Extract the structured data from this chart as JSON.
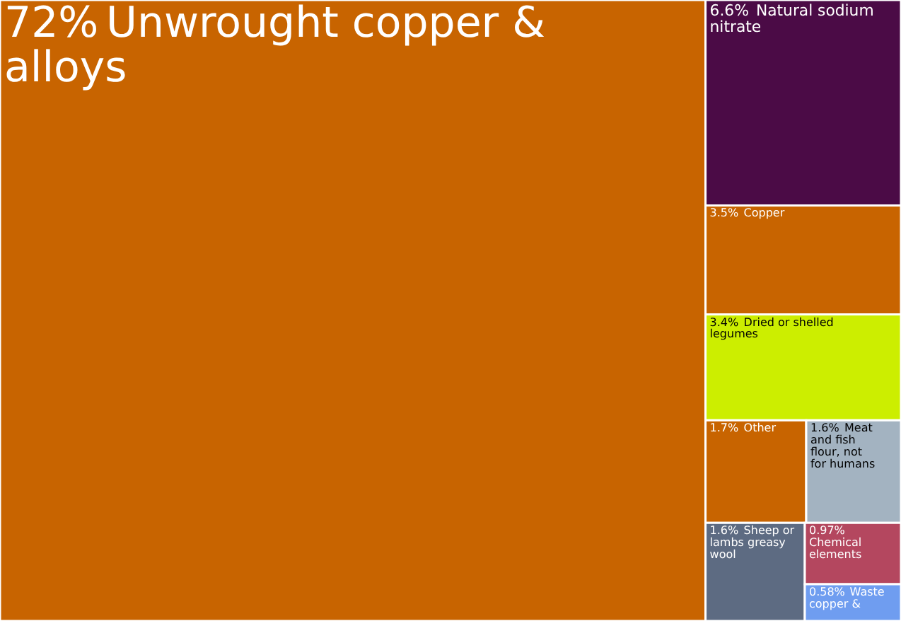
{
  "chart_data": {
    "type": "other",
    "categories": [
      "Unwrought copper & alloys",
      "Natural sodium nitrate",
      "Copper",
      "Dried or shelled legumes",
      "Other",
      "Meat and fish flour, not for humans",
      "Sheep or lambs greasy wool",
      "Chemical elements",
      "Waste copper &"
    ],
    "values": [
      72,
      6.6,
      3.5,
      3.4,
      1.7,
      1.6,
      1.6,
      0.97,
      0.58
    ],
    "colors": [
      "#c86400",
      "#4b0b46",
      "#c86400",
      "#ccee00",
      "#c86400",
      "#a3b3c1",
      "#5d6b82",
      "#b4475f",
      "#6f9df0"
    ],
    "value_labels": [
      "72%",
      "6.6%",
      "3.5%",
      "3.4%",
      "1.7%",
      "1.6%",
      "1.6%",
      "0.97%",
      "0.58%"
    ]
  }
}
